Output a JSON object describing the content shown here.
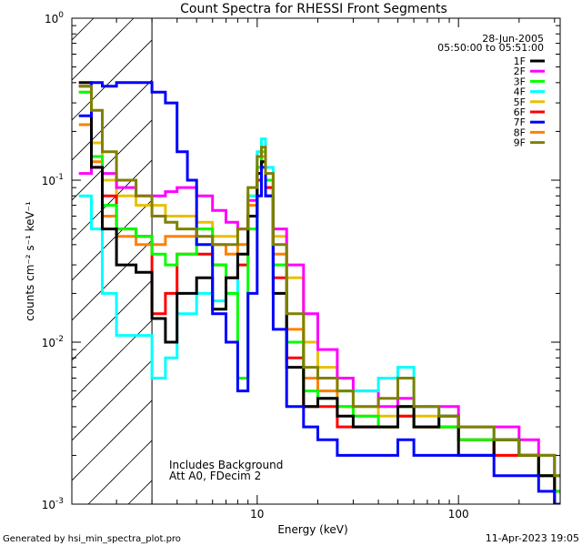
{
  "footer": {
    "generated_by": "Generated by hsi_min_spectra_plot.pro",
    "date": "11-Apr-2023 19:05"
  },
  "chart_data": {
    "type": "line",
    "title": "Count Spectra for RHESSI Front Segments",
    "xlabel": "Energy (keV)",
    "ylabel": "counts cm⁻² s⁻¹ keV⁻¹",
    "xscale": "log",
    "yscale": "log",
    "xlim": [
      1.2,
      320
    ],
    "ylim": [
      0.001,
      1.0
    ],
    "x_tick_labels": [
      {
        "value": 10,
        "label": "10"
      },
      {
        "value": 100,
        "label": "100"
      }
    ],
    "y_tick_labels": [
      {
        "value": 0.001,
        "base": "10",
        "exp": "-3"
      },
      {
        "value": 0.01,
        "base": "10",
        "exp": "-2"
      },
      {
        "value": 0.1,
        "base": "10",
        "exp": "-1"
      },
      {
        "value": 1.0,
        "base": "10",
        "exp": "0"
      }
    ],
    "legend": {
      "position": "top-right",
      "date": "28-Jun-2005",
      "time_range": "05:50:00 to 05:51:00"
    },
    "annotations": [
      "Includes Background",
      "Att A0, FDecim 2"
    ],
    "hatched_region": {
      "xmin": 1.2,
      "xmax": 3.0
    },
    "series": [
      {
        "name": "1F",
        "color": "#000000",
        "points": [
          [
            1.3,
            0.4
          ],
          [
            1.5,
            0.12
          ],
          [
            1.7,
            0.05
          ],
          [
            2.0,
            0.03
          ],
          [
            2.5,
            0.027
          ],
          [
            3.0,
            0.014
          ],
          [
            3.5,
            0.01
          ],
          [
            4.0,
            0.02
          ],
          [
            5.0,
            0.025
          ],
          [
            6.0,
            0.016
          ],
          [
            7.0,
            0.025
          ],
          [
            8.0,
            0.035
          ],
          [
            9.0,
            0.06
          ],
          [
            10.0,
            0.11
          ],
          [
            10.5,
            0.13
          ],
          [
            11.0,
            0.08
          ],
          [
            12.0,
            0.02
          ],
          [
            14.0,
            0.007
          ],
          [
            17.0,
            0.004
          ],
          [
            20.0,
            0.0045
          ],
          [
            25.0,
            0.0035
          ],
          [
            30.0,
            0.003
          ],
          [
            40.0,
            0.003
          ],
          [
            50.0,
            0.004
          ],
          [
            60.0,
            0.003
          ],
          [
            80.0,
            0.0035
          ],
          [
            100.0,
            0.002
          ],
          [
            150.0,
            0.0025
          ],
          [
            200.0,
            0.002
          ],
          [
            250.0,
            0.0015
          ],
          [
            300.0,
            0.001
          ]
        ]
      },
      {
        "name": "2F",
        "color": "#ff00ff",
        "points": [
          [
            1.3,
            0.11
          ],
          [
            1.5,
            0.12
          ],
          [
            1.7,
            0.11
          ],
          [
            2.0,
            0.09
          ],
          [
            2.5,
            0.08
          ],
          [
            3.0,
            0.08
          ],
          [
            3.5,
            0.085
          ],
          [
            4.0,
            0.09
          ],
          [
            5.0,
            0.08
          ],
          [
            6.0,
            0.065
          ],
          [
            7.0,
            0.055
          ],
          [
            8.0,
            0.05
          ],
          [
            9.0,
            0.075
          ],
          [
            10.0,
            0.11
          ],
          [
            10.5,
            0.13
          ],
          [
            11.0,
            0.09
          ],
          [
            12.0,
            0.05
          ],
          [
            14.0,
            0.03
          ],
          [
            17.0,
            0.015
          ],
          [
            20.0,
            0.009
          ],
          [
            25.0,
            0.006
          ],
          [
            30.0,
            0.005
          ],
          [
            40.0,
            0.004
          ],
          [
            50.0,
            0.0045
          ],
          [
            60.0,
            0.004
          ],
          [
            80.0,
            0.004
          ],
          [
            100.0,
            0.003
          ],
          [
            150.0,
            0.003
          ],
          [
            200.0,
            0.0025
          ],
          [
            250.0,
            0.002
          ],
          [
            300.0,
            0.0015
          ]
        ]
      },
      {
        "name": "3F",
        "color": "#00ff00",
        "points": [
          [
            1.3,
            0.35
          ],
          [
            1.5,
            0.14
          ],
          [
            1.7,
            0.07
          ],
          [
            2.0,
            0.05
          ],
          [
            2.5,
            0.045
          ],
          [
            3.0,
            0.035
          ],
          [
            3.5,
            0.03
          ],
          [
            4.0,
            0.035
          ],
          [
            5.0,
            0.05
          ],
          [
            6.0,
            0.03
          ],
          [
            7.0,
            0.02
          ],
          [
            8.0,
            0.006
          ],
          [
            9.0,
            0.05
          ],
          [
            10.0,
            0.12
          ],
          [
            10.5,
            0.15
          ],
          [
            11.0,
            0.1
          ],
          [
            12.0,
            0.03
          ],
          [
            14.0,
            0.01
          ],
          [
            17.0,
            0.005
          ],
          [
            20.0,
            0.0045
          ],
          [
            25.0,
            0.004
          ],
          [
            30.0,
            0.0035
          ],
          [
            40.0,
            0.003
          ],
          [
            50.0,
            0.004
          ],
          [
            60.0,
            0.003
          ],
          [
            80.0,
            0.003
          ],
          [
            100.0,
            0.0025
          ],
          [
            150.0,
            0.0025
          ],
          [
            200.0,
            0.002
          ],
          [
            250.0,
            0.0015
          ],
          [
            300.0,
            0.0012
          ]
        ]
      },
      {
        "name": "4F",
        "color": "#00ffff",
        "points": [
          [
            1.3,
            0.08
          ],
          [
            1.5,
            0.05
          ],
          [
            1.7,
            0.02
          ],
          [
            2.0,
            0.011
          ],
          [
            2.5,
            0.011
          ],
          [
            3.0,
            0.006
          ],
          [
            3.5,
            0.008
          ],
          [
            4.0,
            0.015
          ],
          [
            5.0,
            0.02
          ],
          [
            6.0,
            0.018
          ],
          [
            7.0,
            0.02
          ],
          [
            8.0,
            0.04
          ],
          [
            9.0,
            0.08
          ],
          [
            10.0,
            0.15
          ],
          [
            10.5,
            0.18
          ],
          [
            11.0,
            0.12
          ],
          [
            12.0,
            0.03
          ],
          [
            14.0,
            0.01
          ],
          [
            17.0,
            0.006
          ],
          [
            20.0,
            0.005
          ],
          [
            25.0,
            0.005
          ],
          [
            30.0,
            0.005
          ],
          [
            40.0,
            0.006
          ],
          [
            50.0,
            0.007
          ],
          [
            60.0,
            0.004
          ],
          [
            80.0,
            0.003
          ],
          [
            100.0,
            0.003
          ],
          [
            150.0,
            0.0025
          ],
          [
            200.0,
            0.002
          ],
          [
            250.0,
            0.002
          ],
          [
            300.0,
            0.0015
          ]
        ]
      },
      {
        "name": "5F",
        "color": "#e8c000",
        "points": [
          [
            1.3,
            0.35
          ],
          [
            1.5,
            0.17
          ],
          [
            1.7,
            0.1
          ],
          [
            2.0,
            0.08
          ],
          [
            2.5,
            0.07
          ],
          [
            3.0,
            0.07
          ],
          [
            3.5,
            0.06
          ],
          [
            4.0,
            0.06
          ],
          [
            5.0,
            0.055
          ],
          [
            6.0,
            0.045
          ],
          [
            7.0,
            0.045
          ],
          [
            8.0,
            0.05
          ],
          [
            9.0,
            0.08
          ],
          [
            10.0,
            0.12
          ],
          [
            10.5,
            0.14
          ],
          [
            11.0,
            0.1
          ],
          [
            12.0,
            0.045
          ],
          [
            14.0,
            0.025
          ],
          [
            17.0,
            0.01
          ],
          [
            20.0,
            0.007
          ],
          [
            25.0,
            0.005
          ],
          [
            30.0,
            0.004
          ],
          [
            40.0,
            0.0035
          ],
          [
            50.0,
            0.004
          ],
          [
            60.0,
            0.0035
          ],
          [
            80.0,
            0.003
          ],
          [
            100.0,
            0.003
          ],
          [
            150.0,
            0.0025
          ],
          [
            200.0,
            0.002
          ],
          [
            250.0,
            0.002
          ],
          [
            300.0,
            0.0015
          ]
        ]
      },
      {
        "name": "6F",
        "color": "#ff0000",
        "points": [
          [
            1.3,
            0.38
          ],
          [
            1.5,
            0.14
          ],
          [
            1.7,
            0.08
          ],
          [
            2.0,
            0.05
          ],
          [
            2.5,
            0.045
          ],
          [
            3.0,
            0.015
          ],
          [
            3.5,
            0.02
          ],
          [
            4.0,
            0.035
          ],
          [
            5.0,
            0.035
          ],
          [
            6.0,
            0.03
          ],
          [
            7.0,
            0.025
          ],
          [
            8.0,
            0.03
          ],
          [
            9.0,
            0.06
          ],
          [
            10.0,
            0.1
          ],
          [
            10.5,
            0.13
          ],
          [
            11.0,
            0.09
          ],
          [
            12.0,
            0.025
          ],
          [
            14.0,
            0.008
          ],
          [
            17.0,
            0.004
          ],
          [
            20.0,
            0.004
          ],
          [
            25.0,
            0.003
          ],
          [
            30.0,
            0.003
          ],
          [
            40.0,
            0.003
          ],
          [
            50.0,
            0.0035
          ],
          [
            60.0,
            0.003
          ],
          [
            80.0,
            0.003
          ],
          [
            100.0,
            0.0025
          ],
          [
            150.0,
            0.002
          ],
          [
            200.0,
            0.002
          ],
          [
            250.0,
            0.0015
          ],
          [
            300.0,
            0.0012
          ]
        ]
      },
      {
        "name": "7F",
        "color": "#0000ff",
        "points": [
          [
            1.3,
            0.25
          ],
          [
            1.5,
            0.4
          ],
          [
            1.7,
            0.38
          ],
          [
            2.0,
            0.4
          ],
          [
            2.5,
            0.4
          ],
          [
            3.0,
            0.35
          ],
          [
            3.5,
            0.3
          ],
          [
            4.0,
            0.15
          ],
          [
            4.5,
            0.1
          ],
          [
            5.0,
            0.04
          ],
          [
            6.0,
            0.015
          ],
          [
            7.0,
            0.01
          ],
          [
            8.0,
            0.005
          ],
          [
            9.0,
            0.02
          ],
          [
            10.0,
            0.08
          ],
          [
            10.5,
            0.12
          ],
          [
            11.0,
            0.08
          ],
          [
            12.0,
            0.012
          ],
          [
            14.0,
            0.004
          ],
          [
            17.0,
            0.003
          ],
          [
            20.0,
            0.0025
          ],
          [
            25.0,
            0.002
          ],
          [
            30.0,
            0.002
          ],
          [
            40.0,
            0.002
          ],
          [
            50.0,
            0.0025
          ],
          [
            60.0,
            0.002
          ],
          [
            80.0,
            0.002
          ],
          [
            100.0,
            0.002
          ],
          [
            150.0,
            0.0015
          ],
          [
            200.0,
            0.0015
          ],
          [
            250.0,
            0.0012
          ],
          [
            300.0,
            0.001
          ]
        ]
      },
      {
        "name": "8F",
        "color": "#ff8000",
        "points": [
          [
            1.3,
            0.22
          ],
          [
            1.5,
            0.13
          ],
          [
            1.7,
            0.06
          ],
          [
            2.0,
            0.045
          ],
          [
            2.5,
            0.04
          ],
          [
            3.0,
            0.04
          ],
          [
            3.5,
            0.045
          ],
          [
            4.0,
            0.045
          ],
          [
            5.0,
            0.05
          ],
          [
            6.0,
            0.04
          ],
          [
            7.0,
            0.035
          ],
          [
            8.0,
            0.04
          ],
          [
            9.0,
            0.07
          ],
          [
            10.0,
            0.12
          ],
          [
            10.5,
            0.14
          ],
          [
            11.0,
            0.1
          ],
          [
            12.0,
            0.035
          ],
          [
            14.0,
            0.012
          ],
          [
            17.0,
            0.006
          ],
          [
            20.0,
            0.005
          ],
          [
            25.0,
            0.004
          ],
          [
            30.0,
            0.0035
          ],
          [
            40.0,
            0.003
          ],
          [
            50.0,
            0.0035
          ],
          [
            60.0,
            0.003
          ],
          [
            80.0,
            0.003
          ],
          [
            100.0,
            0.0025
          ],
          [
            150.0,
            0.002
          ],
          [
            200.0,
            0.002
          ],
          [
            250.0,
            0.0015
          ],
          [
            300.0,
            0.0012
          ]
        ]
      },
      {
        "name": "9F",
        "color": "#808000",
        "points": [
          [
            1.3,
            0.38
          ],
          [
            1.5,
            0.27
          ],
          [
            1.7,
            0.15
          ],
          [
            2.0,
            0.1
          ],
          [
            2.5,
            0.08
          ],
          [
            3.0,
            0.06
          ],
          [
            3.5,
            0.055
          ],
          [
            4.0,
            0.05
          ],
          [
            5.0,
            0.045
          ],
          [
            6.0,
            0.04
          ],
          [
            7.0,
            0.04
          ],
          [
            8.0,
            0.05
          ],
          [
            9.0,
            0.09
          ],
          [
            10.0,
            0.14
          ],
          [
            10.5,
            0.16
          ],
          [
            11.0,
            0.11
          ],
          [
            12.0,
            0.04
          ],
          [
            14.0,
            0.015
          ],
          [
            17.0,
            0.007
          ],
          [
            20.0,
            0.006
          ],
          [
            25.0,
            0.005
          ],
          [
            30.0,
            0.004
          ],
          [
            40.0,
            0.0045
          ],
          [
            50.0,
            0.006
          ],
          [
            60.0,
            0.004
          ],
          [
            80.0,
            0.0035
          ],
          [
            100.0,
            0.003
          ],
          [
            150.0,
            0.0025
          ],
          [
            200.0,
            0.002
          ],
          [
            250.0,
            0.002
          ],
          [
            300.0,
            0.0015
          ]
        ]
      }
    ]
  }
}
